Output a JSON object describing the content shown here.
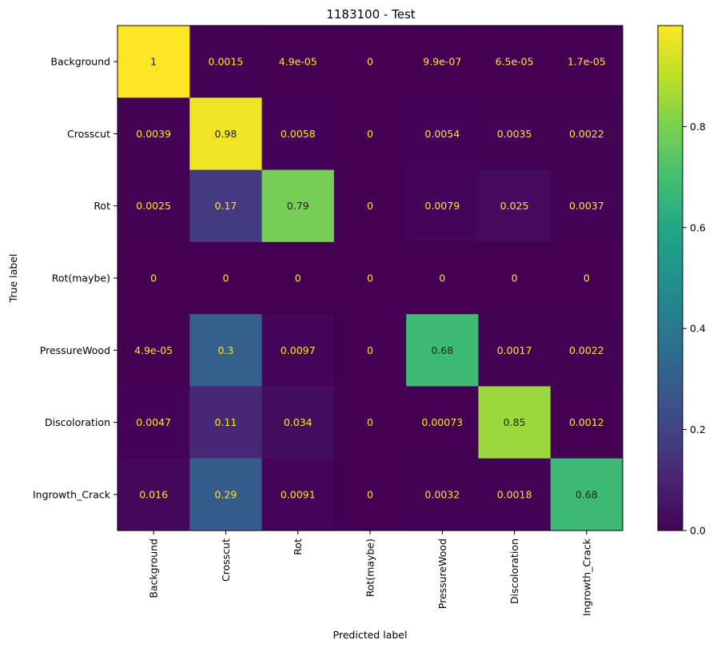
{
  "chart_data": {
    "type": "heatmap",
    "title": "1183100 - Test",
    "xlabel": "Predicted label",
    "ylabel": "True label",
    "x_categories": [
      "Background",
      "Crosscut",
      "Rot",
      "Rot(maybe)",
      "PressureWood",
      "Discoloration",
      "Ingrowth_Crack"
    ],
    "y_categories": [
      "Background",
      "Crosscut",
      "Rot",
      "Rot(maybe)",
      "PressureWood",
      "Discoloration",
      "Ingrowth_Crack"
    ],
    "values": [
      [
        1,
        0.0015,
        4.9e-05,
        0,
        9.9e-07,
        6.5e-05,
        1.7e-05
      ],
      [
        0.0039,
        0.98,
        0.0058,
        0,
        0.0054,
        0.0035,
        0.0022
      ],
      [
        0.0025,
        0.17,
        0.79,
        0,
        0.0079,
        0.025,
        0.0037
      ],
      [
        0,
        0,
        0,
        0,
        0,
        0,
        0
      ],
      [
        4.9e-05,
        0.3,
        0.0097,
        0,
        0.68,
        0.0017,
        0.0022
      ],
      [
        0.0047,
        0.11,
        0.034,
        0,
        0.00073,
        0.85,
        0.0012
      ],
      [
        0.016,
        0.29,
        0.0091,
        0,
        0.0032,
        0.0018,
        0.68
      ]
    ],
    "cell_labels": [
      [
        "1",
        "0.0015",
        "4.9e-05",
        "0",
        "9.9e-07",
        "6.5e-05",
        "1.7e-05"
      ],
      [
        "0.0039",
        "0.98",
        "0.0058",
        "0",
        "0.0054",
        "0.0035",
        "0.0022"
      ],
      [
        "0.0025",
        "0.17",
        "0.79",
        "0",
        "0.0079",
        "0.025",
        "0.0037"
      ],
      [
        "0",
        "0",
        "0",
        "0",
        "0",
        "0",
        "0"
      ],
      [
        "4.9e-05",
        "0.3",
        "0.0097",
        "0",
        "0.68",
        "0.0017",
        "0.0022"
      ],
      [
        "0.0047",
        "0.11",
        "0.034",
        "0",
        "0.00073",
        "0.85",
        "0.0012"
      ],
      [
        "0.016",
        "0.29",
        "0.0091",
        "0",
        "0.0032",
        "0.0018",
        "0.68"
      ]
    ],
    "colormap": "viridis",
    "clim": [
      0,
      1
    ],
    "colorbar_ticks": [
      "0.0",
      "0.2",
      "0.4",
      "0.6",
      "0.8"
    ],
    "colorbar_tick_values": [
      0,
      0.2,
      0.4,
      0.6,
      0.8
    ],
    "text_color_dark_cells": "#fde725",
    "text_color_light_cells": "#1f1f1f",
    "grid": false
  }
}
